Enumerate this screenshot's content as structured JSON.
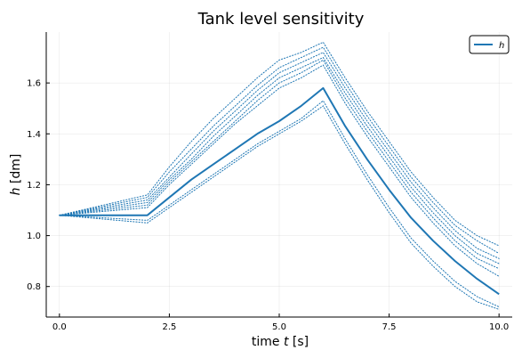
{
  "chart_data": {
    "type": "line",
    "title": "Tank level sensitivity",
    "xlabel_pre": "time ",
    "xlabel_var": "t",
    "xlabel_post": " [s]",
    "ylabel_var": "h",
    "ylabel_post": " [dm]",
    "xlim": [
      -0.3,
      10.3
    ],
    "ylim": [
      0.68,
      1.8
    ],
    "xticks": [
      0.0,
      2.5,
      5.0,
      7.5,
      10.0
    ],
    "xtick_labels": [
      "0.0",
      "2.5",
      "5.0",
      "7.5",
      "10.0"
    ],
    "yticks": [
      0.8,
      1.0,
      1.2,
      1.4,
      1.6
    ],
    "ytick_labels": [
      "0.8",
      "1.0",
      "1.2",
      "1.4",
      "1.6"
    ],
    "grid": true,
    "legend_position": "top-right",
    "legend": [
      {
        "label": "h",
        "style": "solid"
      }
    ],
    "main_series": {
      "name": "h",
      "color": "#1f77b4",
      "style": "solid",
      "x": [
        0,
        2,
        2.5,
        3,
        3.5,
        4,
        4.5,
        5,
        5.5,
        6,
        6.5,
        7,
        7.5,
        8,
        8.5,
        9,
        9.5,
        10
      ],
      "y": [
        1.08,
        1.08,
        1.15,
        1.22,
        1.28,
        1.34,
        1.4,
        1.45,
        1.51,
        1.58,
        1.43,
        1.3,
        1.18,
        1.07,
        0.98,
        0.9,
        0.83,
        0.77
      ]
    },
    "sensitivity_series": [
      {
        "style": "dotted",
        "color": "#1f77b4",
        "x": [
          0,
          2,
          2.5,
          3,
          3.5,
          4,
          4.5,
          5,
          5.5,
          6,
          6.5,
          7,
          7.5,
          8,
          8.5,
          9,
          9.5,
          10
        ],
        "y": [
          1.08,
          1.16,
          1.27,
          1.37,
          1.46,
          1.54,
          1.62,
          1.69,
          1.72,
          1.76,
          1.62,
          1.49,
          1.37,
          1.25,
          1.15,
          1.06,
          1.0,
          0.96
        ]
      },
      {
        "style": "dotted",
        "color": "#1f77b4",
        "x": [
          0,
          2,
          2.5,
          3,
          3.5,
          4,
          4.5,
          5,
          5.5,
          6,
          6.5,
          7,
          7.5,
          8,
          8.5,
          9,
          9.5,
          10
        ],
        "y": [
          1.08,
          1.15,
          1.25,
          1.34,
          1.43,
          1.51,
          1.59,
          1.66,
          1.7,
          1.74,
          1.6,
          1.47,
          1.35,
          1.23,
          1.13,
          1.04,
          0.98,
          0.93
        ]
      },
      {
        "style": "dotted",
        "color": "#1f77b4",
        "x": [
          0,
          2,
          2.5,
          3,
          3.5,
          4,
          4.5,
          5,
          5.5,
          6,
          6.5,
          7,
          7.5,
          8,
          8.5,
          9,
          9.5,
          10
        ],
        "y": [
          1.08,
          1.14,
          1.23,
          1.32,
          1.41,
          1.49,
          1.57,
          1.64,
          1.68,
          1.72,
          1.58,
          1.45,
          1.33,
          1.21,
          1.11,
          1.02,
          0.95,
          0.91
        ]
      },
      {
        "style": "dotted",
        "color": "#1f77b4",
        "x": [
          0,
          2,
          2.5,
          3,
          3.5,
          4,
          4.5,
          5,
          5.5,
          6,
          6.5,
          7,
          7.5,
          8,
          8.5,
          9,
          9.5,
          10
        ],
        "y": [
          1.08,
          1.13,
          1.22,
          1.3,
          1.39,
          1.47,
          1.55,
          1.62,
          1.66,
          1.7,
          1.56,
          1.43,
          1.31,
          1.19,
          1.09,
          1.0,
          0.93,
          0.89
        ]
      },
      {
        "style": "dotted",
        "color": "#1f77b4",
        "x": [
          0,
          2,
          2.5,
          3,
          3.5,
          4,
          4.5,
          5,
          5.5,
          6,
          6.5,
          7,
          7.5,
          8,
          8.5,
          9,
          9.5,
          10
        ],
        "y": [
          1.08,
          1.12,
          1.21,
          1.29,
          1.37,
          1.45,
          1.53,
          1.6,
          1.64,
          1.69,
          1.54,
          1.41,
          1.29,
          1.17,
          1.07,
          0.98,
          0.91,
          0.87
        ]
      },
      {
        "style": "dotted",
        "color": "#1f77b4",
        "x": [
          0,
          2,
          2.5,
          3,
          3.5,
          4,
          4.5,
          5,
          5.5,
          6,
          6.5,
          7,
          7.5,
          8,
          8.5,
          9,
          9.5,
          10
        ],
        "y": [
          1.08,
          1.11,
          1.2,
          1.28,
          1.36,
          1.44,
          1.51,
          1.58,
          1.62,
          1.67,
          1.52,
          1.39,
          1.27,
          1.15,
          1.05,
          0.96,
          0.89,
          0.84
        ]
      },
      {
        "style": "dotted",
        "color": "#1f77b4",
        "x": [
          0,
          2,
          2.5,
          3,
          3.5,
          4,
          4.5,
          5,
          5.5,
          6,
          6.5,
          7,
          7.5,
          8,
          8.5,
          9,
          9.5,
          10
        ],
        "y": [
          1.08,
          1.06,
          1.12,
          1.18,
          1.24,
          1.3,
          1.36,
          1.41,
          1.46,
          1.53,
          1.38,
          1.24,
          1.11,
          0.99,
          0.9,
          0.82,
          0.76,
          0.72
        ]
      },
      {
        "style": "dotted",
        "color": "#1f77b4",
        "x": [
          0,
          2,
          2.5,
          3,
          3.5,
          4,
          4.5,
          5,
          5.5,
          6,
          6.5,
          7,
          7.5,
          8,
          8.5,
          9,
          9.5,
          10
        ],
        "y": [
          1.08,
          1.05,
          1.11,
          1.17,
          1.23,
          1.29,
          1.35,
          1.4,
          1.45,
          1.51,
          1.36,
          1.22,
          1.09,
          0.97,
          0.88,
          0.8,
          0.74,
          0.71
        ]
      }
    ]
  }
}
